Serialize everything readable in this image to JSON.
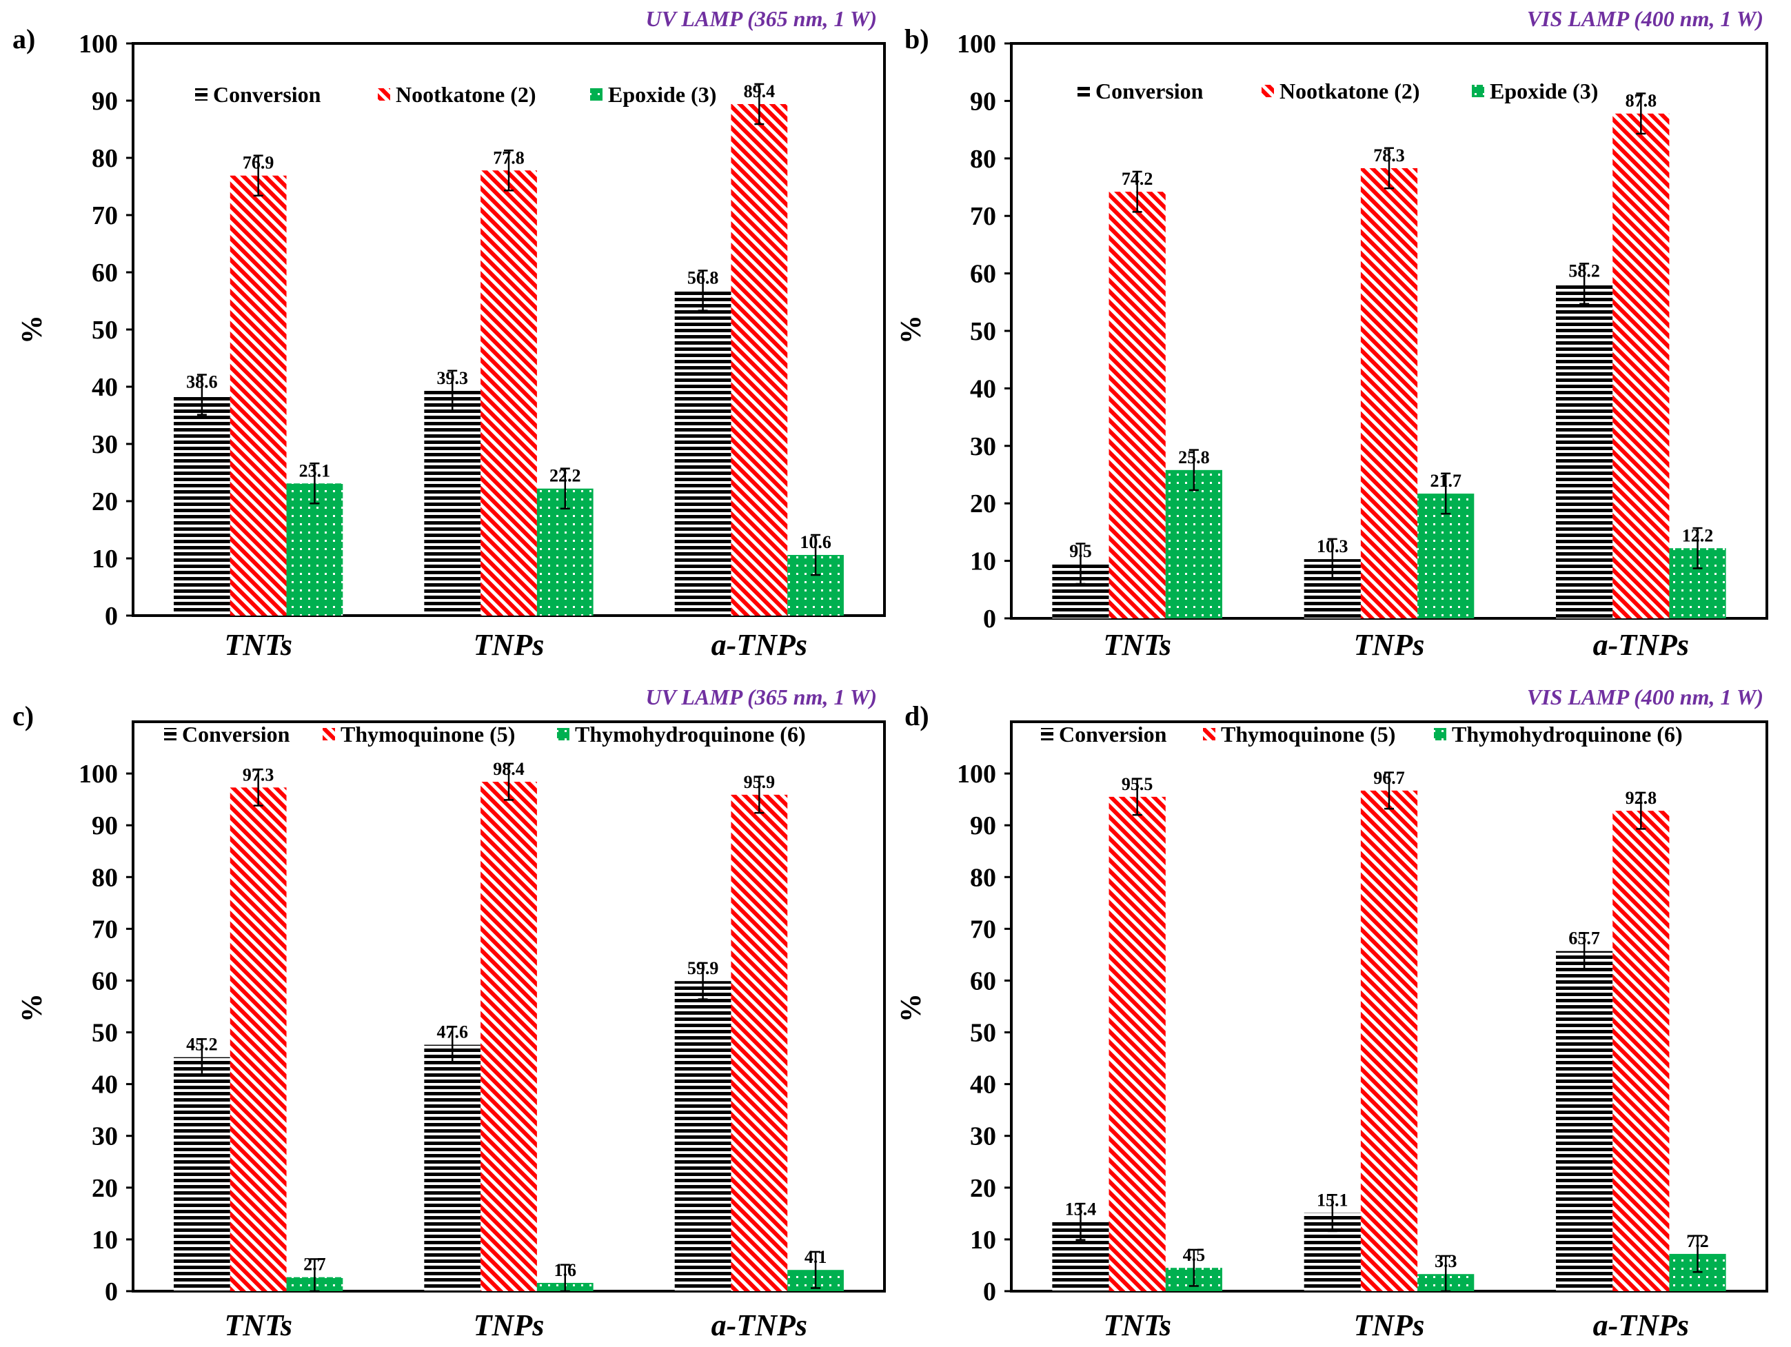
{
  "colors": {
    "conversion": "#000000",
    "product": "#ff0000",
    "byproduct": "#00b050",
    "lamp_text": "#7030A0"
  },
  "chart_data": [
    {
      "type": "bar",
      "panel_label": "a)",
      "lamp": "UV LAMP (365 nm, 1 W)",
      "ylabel": "%",
      "ylim": [
        0,
        100
      ],
      "yticks": [
        0,
        10,
        20,
        30,
        40,
        50,
        60,
        70,
        80,
        90,
        100
      ],
      "categories": [
        "TNTs",
        "TNPs",
        "a-TNPs"
      ],
      "legend_placement": "top",
      "series": [
        {
          "name": "Conversion",
          "values": [
            38.6,
            39.3,
            56.8
          ],
          "labels": [
            "38.6",
            "39.3",
            "56.8"
          ]
        },
        {
          "name": "Nootkatone (2)",
          "values": [
            76.9,
            77.8,
            89.4
          ],
          "labels": [
            "76.9",
            "77.8",
            "89.4"
          ]
        },
        {
          "name": "Epoxide (3)",
          "values": [
            23.1,
            22.2,
            10.6
          ],
          "labels": [
            "23.1",
            "22.2",
            "10.6"
          ]
        }
      ]
    },
    {
      "type": "bar",
      "panel_label": "b)",
      "lamp": "VIS LAMP (400 nm, 1 W)",
      "ylabel": "%",
      "ylim": [
        0,
        100
      ],
      "yticks": [
        0,
        10,
        20,
        30,
        40,
        50,
        60,
        70,
        80,
        90,
        100
      ],
      "categories": [
        "TNTs",
        "TNPs",
        "a-TNPs"
      ],
      "legend_placement": "top",
      "series": [
        {
          "name": "Conversion",
          "values": [
            9.5,
            10.3,
            58.2
          ],
          "labels": [
            "9.5",
            "10.3",
            "58.2"
          ]
        },
        {
          "name": "Nootkatone (2)",
          "values": [
            74.2,
            78.3,
            87.8
          ],
          "labels": [
            "74.2",
            "78.3",
            "87.8"
          ]
        },
        {
          "name": "Epoxide (3)",
          "values": [
            25.8,
            21.7,
            12.2
          ],
          "labels": [
            "25.8",
            "21.7",
            "12.2"
          ]
        }
      ]
    },
    {
      "type": "bar",
      "panel_label": "c)",
      "lamp": "UV LAMP (365 nm, 1 W)",
      "ylabel": "%",
      "ylim": [
        0,
        110
      ],
      "yticks": [
        0,
        10,
        20,
        30,
        40,
        50,
        60,
        70,
        80,
        90,
        100
      ],
      "categories": [
        "TNTs",
        "TNPs",
        "a-TNPs"
      ],
      "legend_placement": "top",
      "series": [
        {
          "name": "Conversion",
          "values": [
            45.2,
            47.6,
            59.9
          ],
          "labels": [
            "45.2",
            "47.6",
            "59.9"
          ]
        },
        {
          "name": "Thymoquinone (5)",
          "values": [
            97.3,
            98.4,
            95.9
          ],
          "labels": [
            "97.3",
            "98.4",
            "95.9"
          ]
        },
        {
          "name": "Thymohydroquinone (6)",
          "values": [
            2.7,
            1.6,
            4.1
          ],
          "labels": [
            "2.7",
            "1.6",
            "4.1"
          ]
        }
      ]
    },
    {
      "type": "bar",
      "panel_label": "d)",
      "lamp": "VIS LAMP (400 nm, 1 W)",
      "ylabel": "%",
      "ylim": [
        0,
        110
      ],
      "yticks": [
        0,
        10,
        20,
        30,
        40,
        50,
        60,
        70,
        80,
        90,
        100
      ],
      "categories": [
        "TNTs",
        "TNPs",
        "a-TNPs"
      ],
      "legend_placement": "top",
      "series": [
        {
          "name": "Conversion",
          "values": [
            13.4,
            15.1,
            65.7
          ],
          "labels": [
            "13.4",
            "15.1",
            "65.7"
          ]
        },
        {
          "name": "Thymoquinone (5)",
          "values": [
            95.5,
            96.7,
            92.8
          ],
          "labels": [
            "95.5",
            "96.7",
            "92.8"
          ]
        },
        {
          "name": "Thymohydroquinone (6)",
          "values": [
            4.5,
            3.3,
            7.2
          ],
          "labels": [
            "4.5",
            "3.3",
            "7.2"
          ]
        }
      ]
    }
  ]
}
